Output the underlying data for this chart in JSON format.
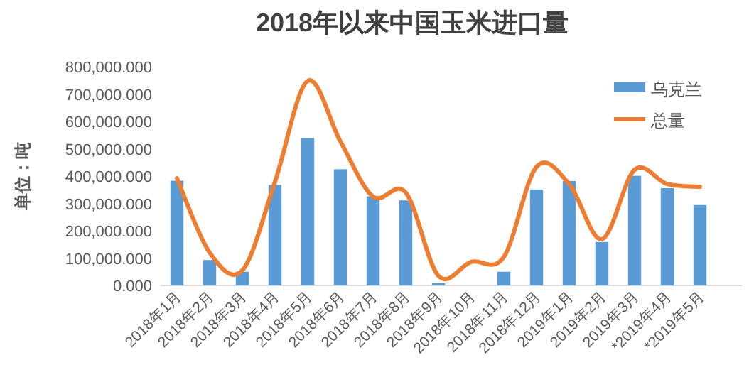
{
  "chart_data": {
    "type": "bar",
    "title": "2018年以来中国玉米进口量",
    "ylabel": "单位：吨",
    "categories": [
      "2018年1月",
      "2018年2月",
      "2018年3月",
      "2018年4月",
      "2018年5月",
      "2018年6月",
      "2018年7月",
      "2018年8月",
      "2018年9月",
      "2018年10月",
      "2018年11月",
      "2018年12月",
      "2019年1月",
      "2019年2月",
      "2019年3月",
      "*2019年4月",
      "*2019年5月"
    ],
    "series": [
      {
        "name": "乌克兰",
        "color": "#5b9bd5",
        "values": [
          383000,
          93000,
          50000,
          368000,
          539000,
          425000,
          326000,
          311000,
          8000,
          0,
          50000,
          351000,
          382000,
          159000,
          401000,
          356000,
          294000
        ]
      },
      {
        "name": "总量",
        "type": "line",
        "color": "#ed7d31",
        "marker": "none",
        "values": [
          392000,
          120000,
          55000,
          380000,
          748000,
          527000,
          325000,
          340000,
          35000,
          86000,
          104000,
          434000,
          371000,
          169000,
          423000,
          371000,
          361000
        ]
      }
    ],
    "ylim": [
      0,
      800000
    ],
    "yticks": [
      {
        "value": 0,
        "label": "0.000"
      },
      {
        "value": 100000,
        "label": "100,000.000"
      },
      {
        "value": 200000,
        "label": "200,000.000"
      },
      {
        "value": 300000,
        "label": "300,000.000"
      },
      {
        "value": 400000,
        "label": "400,000.000"
      },
      {
        "value": 500000,
        "label": "500,000.000"
      },
      {
        "value": 600000,
        "label": "600,000.000"
      },
      {
        "value": 700000,
        "label": "700,000.000"
      },
      {
        "value": 800000,
        "label": "800,000.000"
      }
    ],
    "grid": false,
    "legend": "top right"
  }
}
